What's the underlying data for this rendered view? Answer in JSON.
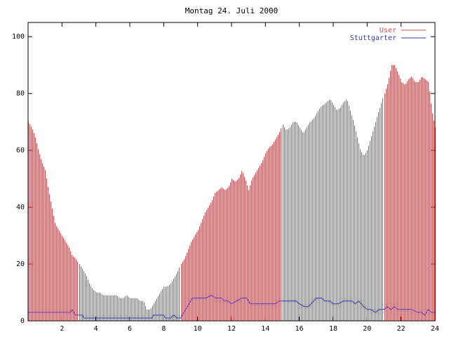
{
  "chart_data": {
    "type": "bar",
    "title": "Montag 24. Juli 2000",
    "xlabel": "",
    "ylabel": "",
    "xlim": [
      0,
      24
    ],
    "ylim": [
      0,
      105
    ],
    "x_ticks": [
      2,
      4,
      6,
      8,
      10,
      12,
      14,
      16,
      18,
      20,
      22,
      24
    ],
    "y_ticks": [
      0,
      20,
      40,
      60,
      80,
      100
    ],
    "legend_position": "top-right",
    "series": [
      {
        "name": "User",
        "style": "impulses",
        "color": "#d8484a",
        "points": [
          [
            0.0,
            70
          ],
          [
            0.2,
            68
          ],
          [
            0.4,
            65
          ],
          [
            0.6,
            60
          ],
          [
            0.8,
            56
          ],
          [
            1.0,
            53
          ],
          [
            1.2,
            46
          ],
          [
            1.4,
            40
          ],
          [
            1.6,
            34
          ],
          [
            1.8,
            32
          ],
          [
            2.0,
            30
          ],
          [
            2.2,
            28
          ],
          [
            2.4,
            26
          ],
          [
            2.6,
            23
          ],
          [
            2.8,
            22
          ],
          [
            3.0,
            20
          ],
          [
            3.2,
            18
          ],
          [
            3.4,
            16
          ],
          [
            3.6,
            13
          ],
          [
            3.8,
            11
          ],
          [
            4.0,
            10
          ],
          [
            4.2,
            10
          ],
          [
            4.4,
            9
          ],
          [
            4.6,
            9
          ],
          [
            4.8,
            9
          ],
          [
            5.0,
            9
          ],
          [
            5.2,
            9
          ],
          [
            5.4,
            8
          ],
          [
            5.6,
            8
          ],
          [
            5.8,
            9
          ],
          [
            6.0,
            8
          ],
          [
            6.2,
            8
          ],
          [
            6.4,
            8
          ],
          [
            6.6,
            7
          ],
          [
            6.8,
            7
          ],
          [
            7.0,
            4
          ],
          [
            7.2,
            4
          ],
          [
            7.4,
            6
          ],
          [
            7.6,
            8
          ],
          [
            7.8,
            10
          ],
          [
            8.0,
            12
          ],
          [
            8.2,
            12
          ],
          [
            8.4,
            13
          ],
          [
            8.6,
            15
          ],
          [
            8.8,
            17
          ],
          [
            9.0,
            20
          ],
          [
            9.2,
            22
          ],
          [
            9.4,
            25
          ],
          [
            9.6,
            28
          ],
          [
            9.8,
            30
          ],
          [
            10.0,
            32
          ],
          [
            10.2,
            35
          ],
          [
            10.4,
            38
          ],
          [
            10.6,
            40
          ],
          [
            10.8,
            42
          ],
          [
            11.0,
            45
          ],
          [
            11.2,
            46
          ],
          [
            11.4,
            47
          ],
          [
            11.6,
            46
          ],
          [
            11.8,
            47
          ],
          [
            12.0,
            50
          ],
          [
            12.2,
            49
          ],
          [
            12.4,
            50
          ],
          [
            12.6,
            53
          ],
          [
            12.8,
            50
          ],
          [
            13.0,
            46
          ],
          [
            13.2,
            50
          ],
          [
            13.4,
            52
          ],
          [
            13.6,
            54
          ],
          [
            13.8,
            56
          ],
          [
            14.0,
            59
          ],
          [
            14.2,
            61
          ],
          [
            14.4,
            62
          ],
          [
            14.6,
            64
          ],
          [
            14.8,
            66
          ],
          [
            15.0,
            69
          ],
          [
            15.2,
            67
          ],
          [
            15.4,
            68
          ],
          [
            15.6,
            70
          ],
          [
            15.8,
            70
          ],
          [
            16.0,
            68
          ],
          [
            16.2,
            66
          ],
          [
            16.4,
            68
          ],
          [
            16.6,
            70
          ],
          [
            16.8,
            71
          ],
          [
            17.0,
            73
          ],
          [
            17.2,
            75
          ],
          [
            17.4,
            76
          ],
          [
            17.6,
            77
          ],
          [
            17.8,
            78
          ],
          [
            18.0,
            76
          ],
          [
            18.2,
            74
          ],
          [
            18.4,
            75
          ],
          [
            18.6,
            77
          ],
          [
            18.8,
            78
          ],
          [
            19.0,
            74
          ],
          [
            19.2,
            70
          ],
          [
            19.4,
            65
          ],
          [
            19.6,
            60
          ],
          [
            19.8,
            58
          ],
          [
            20.0,
            60
          ],
          [
            20.2,
            64
          ],
          [
            20.4,
            68
          ],
          [
            20.6,
            72
          ],
          [
            20.8,
            76
          ],
          [
            21.0,
            80
          ],
          [
            21.2,
            84
          ],
          [
            21.4,
            90
          ],
          [
            21.6,
            90
          ],
          [
            21.8,
            87
          ],
          [
            22.0,
            84
          ],
          [
            22.2,
            83
          ],
          [
            22.4,
            85
          ],
          [
            22.6,
            86
          ],
          [
            22.8,
            84
          ],
          [
            23.0,
            84
          ],
          [
            23.2,
            86
          ],
          [
            23.4,
            85
          ],
          [
            23.6,
            84
          ],
          [
            23.8,
            74
          ],
          [
            24.0,
            68
          ]
        ]
      },
      {
        "name": "Stuttgarter",
        "style": "line",
        "color": "#2a35c8",
        "points": [
          [
            0,
            3
          ],
          [
            2.5,
            3
          ],
          [
            2.6,
            4
          ],
          [
            2.8,
            2
          ],
          [
            3.2,
            2
          ],
          [
            3.3,
            1
          ],
          [
            7.3,
            1
          ],
          [
            7.4,
            2
          ],
          [
            8.0,
            2
          ],
          [
            8.1,
            1
          ],
          [
            8.4,
            1
          ],
          [
            8.6,
            2
          ],
          [
            8.8,
            1
          ],
          [
            9.0,
            1
          ],
          [
            9.1,
            2
          ],
          [
            9.3,
            4
          ],
          [
            9.5,
            6
          ],
          [
            9.7,
            8
          ],
          [
            10.0,
            8
          ],
          [
            10.5,
            8
          ],
          [
            10.8,
            9
          ],
          [
            11.1,
            8
          ],
          [
            11.4,
            8
          ],
          [
            11.6,
            7
          ],
          [
            11.8,
            7
          ],
          [
            12.0,
            6
          ],
          [
            12.3,
            7
          ],
          [
            12.6,
            8
          ],
          [
            12.9,
            8
          ],
          [
            13.1,
            6
          ],
          [
            14.6,
            6
          ],
          [
            14.8,
            7
          ],
          [
            15.2,
            7
          ],
          [
            15.5,
            7
          ],
          [
            15.8,
            7
          ],
          [
            16.0,
            6
          ],
          [
            16.3,
            5
          ],
          [
            16.5,
            5
          ],
          [
            16.7,
            6
          ],
          [
            17.0,
            8
          ],
          [
            17.3,
            8
          ],
          [
            17.5,
            7
          ],
          [
            17.8,
            7
          ],
          [
            18.0,
            6
          ],
          [
            18.3,
            6
          ],
          [
            18.6,
            7
          ],
          [
            18.9,
            7
          ],
          [
            19.1,
            7
          ],
          [
            19.3,
            6
          ],
          [
            19.5,
            7
          ],
          [
            19.8,
            5
          ],
          [
            20.0,
            4
          ],
          [
            20.2,
            4
          ],
          [
            20.5,
            3
          ],
          [
            20.7,
            4
          ],
          [
            21.0,
            4
          ],
          [
            21.2,
            5
          ],
          [
            21.4,
            4
          ],
          [
            21.6,
            5
          ],
          [
            21.8,
            4
          ],
          [
            22.0,
            4
          ],
          [
            22.6,
            4
          ],
          [
            23.0,
            3
          ],
          [
            23.2,
            3
          ],
          [
            23.4,
            2
          ],
          [
            23.6,
            4
          ],
          [
            23.8,
            3
          ],
          [
            24.0,
            3
          ]
        ]
      }
    ]
  }
}
